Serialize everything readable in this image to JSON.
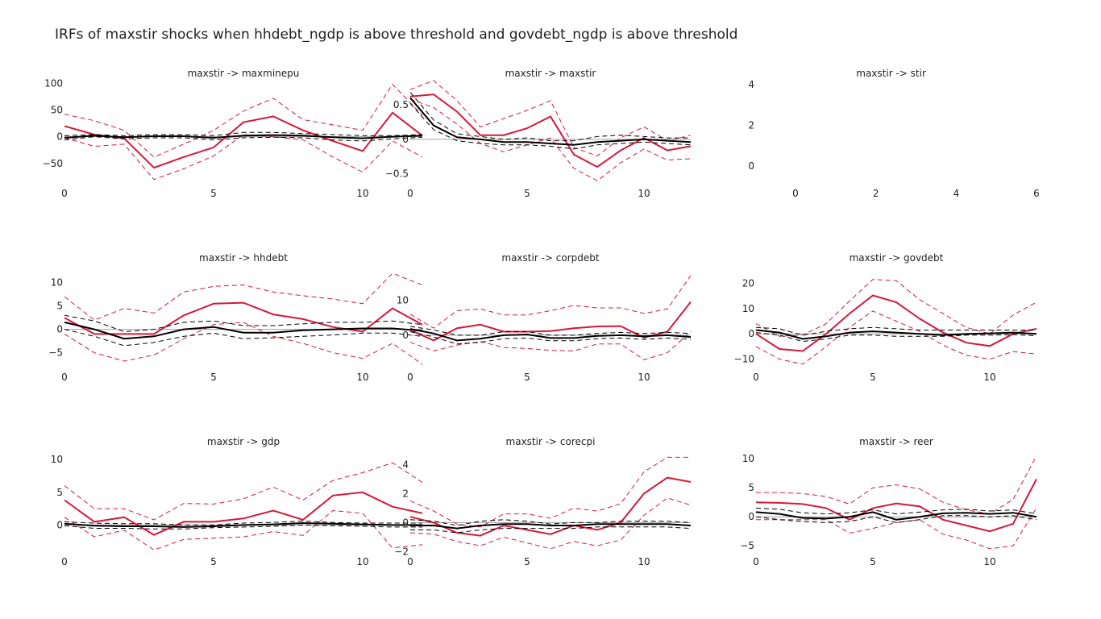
{
  "title": "IRFs of maxstir shocks when hhdebt_ngdp is above threshold and govdebt_ngdp is above threshold",
  "colors": {
    "state": "#d6183b",
    "linear": "#000000",
    "zero_line": "#a0a0a0"
  },
  "chart_data": [
    {
      "type": "line",
      "title": "maxstir -> maxminepu",
      "xlim": [
        0,
        12
      ],
      "ylim": [
        -85,
        105
      ],
      "xticks": [
        0,
        5,
        10
      ],
      "yticks": [
        -50,
        0,
        50,
        100
      ],
      "x": [
        0,
        1,
        2,
        3,
        4,
        5,
        6,
        7,
        8,
        9,
        10,
        11,
        12
      ],
      "series": [
        {
          "role": "state_upper",
          "values": [
            42,
            30,
            12,
            -38,
            -14,
            12,
            48,
            72,
            32,
            22,
            12,
            98,
            40
          ]
        },
        {
          "role": "state",
          "values": [
            20,
            4,
            -3,
            -58,
            -38,
            -20,
            27,
            38,
            12,
            -8,
            -27,
            45,
            2
          ]
        },
        {
          "role": "state_lower",
          "values": [
            -2,
            -18,
            -14,
            -80,
            -60,
            -36,
            4,
            0,
            -6,
            -38,
            -66,
            -8,
            -38
          ]
        },
        {
          "role": "linear_upper",
          "values": [
            2,
            4,
            2,
            4,
            4,
            2,
            8,
            8,
            6,
            4,
            2,
            2,
            4
          ]
        },
        {
          "role": "linear",
          "values": [
            -2,
            2,
            -1,
            1,
            1,
            -2,
            2,
            3,
            2,
            -1,
            -3,
            0,
            2
          ]
        },
        {
          "role": "linear_lower",
          "values": [
            -6,
            0,
            -4,
            -2,
            -2,
            -6,
            -2,
            -1,
            -2,
            -6,
            -8,
            -4,
            -1
          ]
        }
      ]
    },
    {
      "type": "line",
      "title": "maxstir -> maxstir",
      "xlim": [
        0,
        12
      ],
      "ylim": [
        -0.62,
        0.85
      ],
      "xticks": [
        0,
        5,
        10
      ],
      "yticks": [
        -0.5,
        0,
        0.5
      ],
      "x": [
        0,
        1,
        2,
        3,
        4,
        5,
        6,
        7,
        8,
        9,
        10,
        11,
        12
      ],
      "series": [
        {
          "role": "state_upper",
          "values": [
            0.72,
            0.85,
            0.56,
            0.18,
            0.3,
            0.42,
            0.56,
            -0.12,
            -0.24,
            0.02,
            0.18,
            -0.02,
            0.06
          ]
        },
        {
          "role": "state",
          "values": [
            0.62,
            0.65,
            0.4,
            0.06,
            0.06,
            0.16,
            0.33,
            -0.22,
            -0.4,
            -0.16,
            0.02,
            -0.16,
            -0.1
          ]
        },
        {
          "role": "state_lower",
          "values": [
            0.58,
            0.46,
            0.22,
            -0.06,
            -0.18,
            -0.08,
            0.02,
            -0.42,
            -0.6,
            -0.34,
            -0.14,
            -0.3,
            -0.28
          ]
        },
        {
          "role": "linear_upper",
          "values": [
            0.68,
            0.28,
            0.08,
            0.04,
            0.0,
            0.02,
            -0.02,
            -0.02,
            0.04,
            0.06,
            0.04,
            0.02,
            0.02
          ]
        },
        {
          "role": "linear",
          "values": [
            0.6,
            0.2,
            0.03,
            0.0,
            -0.04,
            -0.04,
            -0.06,
            -0.08,
            -0.04,
            -0.02,
            0.0,
            -0.02,
            -0.04
          ]
        },
        {
          "role": "linear_lower",
          "values": [
            0.52,
            0.14,
            -0.02,
            -0.06,
            -0.08,
            -0.08,
            -0.1,
            -0.14,
            -0.08,
            -0.06,
            -0.04,
            -0.06,
            -0.08
          ]
        }
      ]
    },
    {
      "type": "line",
      "title": "maxstir -> stir",
      "xlim": [
        -1,
        6
      ],
      "ylim": [
        -0.8,
        4.2
      ],
      "xticks": [
        0,
        2,
        4,
        6
      ],
      "yticks": [
        0,
        2,
        4
      ],
      "x": [],
      "series": []
    },
    {
      "type": "line",
      "title": "maxstir -> hhdebt",
      "xlim": [
        0,
        12
      ],
      "ylim": [
        -8,
        11.5
      ],
      "xticks": [
        0,
        5,
        10
      ],
      "yticks": [
        -5,
        0,
        5,
        10
      ],
      "x": [
        0,
        1,
        2,
        3,
        4,
        5,
        6,
        7,
        8,
        9,
        10,
        11,
        12
      ],
      "series": [
        {
          "role": "state_upper",
          "values": [
            7,
            2,
            4.5,
            3.5,
            8,
            9.2,
            9.5,
            8,
            7.2,
            6.5,
            5.5,
            12,
            9.5
          ]
        },
        {
          "role": "state",
          "values": [
            2.5,
            -1,
            -1,
            -1,
            3,
            5.5,
            5.7,
            3.2,
            2.2,
            0.5,
            -0.5,
            4.5,
            1
          ]
        },
        {
          "role": "state_lower",
          "values": [
            -1,
            -5,
            -6.8,
            -5.5,
            -2,
            1,
            1.5,
            -1.5,
            -3,
            -5,
            -6.2,
            -3,
            -7.5
          ]
        },
        {
          "role": "linear_upper",
          "values": [
            3,
            1.8,
            -0.5,
            0,
            1.5,
            1.8,
            0.8,
            0.8,
            1.2,
            1.5,
            1.5,
            1.8,
            1
          ]
        },
        {
          "role": "linear",
          "values": [
            1.5,
            0,
            -2,
            -1.5,
            0,
            0.5,
            -0.7,
            -0.7,
            -0.2,
            0,
            0.2,
            0.2,
            -0.3
          ]
        },
        {
          "role": "linear_lower",
          "values": [
            0,
            -1.5,
            -3.5,
            -2.8,
            -1.5,
            -0.8,
            -2,
            -1.8,
            -1.5,
            -1.2,
            -0.8,
            -0.8,
            -1.5
          ]
        }
      ]
    },
    {
      "type": "line",
      "title": "maxstir -> corpdebt",
      "xlim": [
        0,
        12
      ],
      "ylim": [
        -9,
        17
      ],
      "xticks": [
        0,
        5,
        10
      ],
      "yticks": [
        0,
        10
      ],
      "x": [
        0,
        1,
        2,
        3,
        4,
        5,
        6,
        7,
        8,
        9,
        10,
        11,
        12
      ],
      "series": [
        {
          "role": "state_upper",
          "values": [
            6,
            2,
            7,
            7.5,
            5.8,
            5.8,
            7,
            8.5,
            7.8,
            7.8,
            6.2,
            7.5,
            17
          ]
        },
        {
          "role": "state",
          "values": [
            1.5,
            -1.5,
            2,
            3,
            1,
            1,
            1.2,
            2,
            2.5,
            2.6,
            -0.7,
            1,
            9.5
          ]
        },
        {
          "role": "state_lower",
          "values": [
            -2,
            -4.5,
            -2.8,
            -1.8,
            -3.5,
            -3.8,
            -4.3,
            -4.5,
            -2.5,
            -2.5,
            -7,
            -5,
            1
          ]
        },
        {
          "role": "linear_upper",
          "values": [
            2.5,
            1.5,
            0,
            0,
            1,
            1,
            0,
            0,
            0.5,
            0.8,
            0.5,
            0.8,
            0.5
          ]
        },
        {
          "role": "linear",
          "values": [
            1.8,
            0.5,
            -1.5,
            -1,
            0,
            0.2,
            -0.8,
            -0.8,
            -0.2,
            0,
            -0.3,
            0,
            -0.5
          ]
        },
        {
          "role": "linear_lower",
          "values": [
            1,
            -0.5,
            -2.5,
            -2,
            -1,
            -0.8,
            -1.6,
            -1.6,
            -1,
            -0.8,
            -1.2,
            -0.8,
            -1.2
          ]
        }
      ]
    },
    {
      "type": "line",
      "title": "maxstir -> govdebt",
      "xlim": [
        0,
        12
      ],
      "ylim": [
        -13,
        23
      ],
      "xticks": [
        0,
        5,
        10
      ],
      "yticks": [
        -10,
        0,
        10,
        20
      ],
      "x": [
        0,
        1,
        2,
        3,
        4,
        5,
        6,
        7,
        8,
        9,
        10,
        11,
        12
      ],
      "series": [
        {
          "role": "state_upper",
          "values": [
            4,
            -1,
            -0.5,
            4,
            13,
            21.5,
            21,
            13.5,
            8,
            2.5,
            0,
            7.5,
            12.5
          ]
        },
        {
          "role": "state",
          "values": [
            0,
            -6,
            -6.8,
            0,
            8,
            15.2,
            12.5,
            6,
            0.5,
            -3.5,
            -4.8,
            0,
            2
          ]
        },
        {
          "role": "state_lower",
          "values": [
            -5,
            -10,
            -12,
            -5,
            2.5,
            9,
            5,
            1,
            -4.5,
            -8.5,
            -10,
            -7,
            -8
          ]
        },
        {
          "role": "linear_upper",
          "values": [
            2.5,
            2,
            -0.5,
            1,
            2,
            2.5,
            2,
            1.5,
            1.5,
            1.5,
            1.5,
            1.5,
            1.5
          ]
        },
        {
          "role": "linear",
          "values": [
            1.5,
            0.5,
            -2,
            -1,
            0.5,
            1,
            0.5,
            0,
            -0.5,
            0,
            0.2,
            0.5,
            0
          ]
        },
        {
          "role": "linear_lower",
          "values": [
            0.5,
            -0.5,
            -3,
            -2,
            -0.5,
            -0.5,
            -1,
            -1,
            -1,
            -0.5,
            -0.5,
            -0.3,
            -0.8
          ]
        }
      ]
    },
    {
      "type": "line",
      "title": "maxstir -> gdp",
      "xlim": [
        0,
        12
      ],
      "ylim": [
        -4.5,
        11
      ],
      "xticks": [
        0,
        5,
        10
      ],
      "yticks": [
        0,
        5,
        10
      ],
      "x": [
        0,
        1,
        2,
        3,
        4,
        5,
        6,
        7,
        8,
        9,
        10,
        11,
        12
      ],
      "series": [
        {
          "role": "state_upper",
          "values": [
            6,
            2.5,
            2.5,
            0.8,
            3.3,
            3.2,
            4,
            5.8,
            3.8,
            6.8,
            8,
            9.5,
            6.5
          ]
        },
        {
          "role": "state",
          "values": [
            3.8,
            0.5,
            1.2,
            -1.5,
            0.5,
            0.5,
            1,
            2.2,
            0.8,
            4.5,
            5,
            2.8,
            1.8
          ]
        },
        {
          "role": "state_lower",
          "values": [
            1.2,
            -1.8,
            -0.8,
            -3.8,
            -2.2,
            -2,
            -1.8,
            -1,
            -1.6,
            2.2,
            1.8,
            -3.5,
            -3
          ]
        },
        {
          "role": "linear_upper",
          "values": [
            0.5,
            0.3,
            0.2,
            0.2,
            0,
            0,
            0.3,
            0.4,
            0.6,
            0.4,
            0.3,
            0.3,
            0.3
          ]
        },
        {
          "role": "linear",
          "values": [
            0.2,
            -0.1,
            -0.2,
            -0.2,
            -0.3,
            -0.2,
            0,
            0.1,
            0.3,
            0.2,
            0.1,
            0,
            0
          ]
        },
        {
          "role": "linear_lower",
          "values": [
            -0.1,
            -0.5,
            -0.5,
            -0.6,
            -0.6,
            -0.4,
            -0.3,
            -0.2,
            0,
            -0.1,
            -0.2,
            -0.3,
            -0.3
          ]
        }
      ]
    },
    {
      "type": "line",
      "title": "maxstir -> corecpi",
      "xlim": [
        0,
        12
      ],
      "ylim": [
        -2.2,
        4.8
      ],
      "xticks": [
        0,
        5,
        10
      ],
      "yticks": [
        -2,
        0,
        2,
        4
      ],
      "x": [
        0,
        1,
        2,
        3,
        4,
        5,
        6,
        7,
        8,
        9,
        10,
        11,
        12
      ],
      "series": [
        {
          "role": "state_upper",
          "values": [
            1.5,
            0.8,
            -0.1,
            -0.3,
            0.6,
            0.6,
            0.3,
            1,
            0.8,
            1.3,
            3.5,
            4.5,
            4.5
          ]
        },
        {
          "role": "state",
          "values": [
            0.4,
            0,
            -0.7,
            -0.9,
            -0.2,
            -0.5,
            -0.8,
            -0.2,
            -0.5,
            0,
            2,
            3.1,
            2.8
          ]
        },
        {
          "role": "state_lower",
          "values": [
            -0.7,
            -0.8,
            -1.3,
            -1.6,
            -1,
            -1.4,
            -1.8,
            -1.3,
            -1.6,
            -1.2,
            0.5,
            1.7,
            1.2
          ]
        },
        {
          "role": "linear_upper",
          "values": [
            0.2,
            0.1,
            -0.2,
            0.1,
            0.2,
            0.1,
            -0.1,
            0,
            0,
            0.1,
            0.1,
            0.1,
            0
          ]
        },
        {
          "role": "linear",
          "values": [
            -0.2,
            -0.2,
            -0.4,
            -0.2,
            -0.1,
            -0.1,
            -0.2,
            -0.2,
            -0.1,
            -0.1,
            -0.1,
            -0.1,
            -0.2
          ]
        },
        {
          "role": "linear_lower",
          "values": [
            -0.5,
            -0.5,
            -0.7,
            -0.5,
            -0.4,
            -0.4,
            -0.4,
            -0.4,
            -0.3,
            -0.3,
            -0.3,
            -0.3,
            -0.4
          ]
        }
      ]
    },
    {
      "type": "line",
      "title": "maxstir -> reer",
      "xlim": [
        0,
        12
      ],
      "ylim": [
        -6.5,
        11
      ],
      "xticks": [
        0,
        5,
        10
      ],
      "yticks": [
        -5,
        0,
        5,
        10
      ],
      "x": [
        0,
        1,
        2,
        3,
        4,
        5,
        6,
        7,
        8,
        9,
        10,
        11,
        12
      ],
      "series": [
        {
          "role": "state_upper",
          "values": [
            4.2,
            4.2,
            4,
            3.5,
            2.2,
            5,
            5.5,
            4.8,
            2.5,
            1.2,
            0.5,
            3,
            10.5
          ]
        },
        {
          "role": "state",
          "values": [
            2.5,
            2.4,
            2.2,
            1.5,
            -0.5,
            1.5,
            2.3,
            1.8,
            -0.5,
            -1.5,
            -2.5,
            -1.2,
            6.5
          ]
        },
        {
          "role": "state_lower",
          "values": [
            -0.5,
            -0.5,
            -0.5,
            -0.5,
            -2.8,
            -2,
            -1,
            -0.5,
            -3,
            -4,
            -5.5,
            -5,
            1.5
          ]
        },
        {
          "role": "linear_upper",
          "values": [
            1.5,
            1.3,
            0.7,
            0.5,
            0.7,
            1.2,
            0.5,
            0.8,
            1.2,
            1.3,
            1,
            1.2,
            0.5
          ]
        },
        {
          "role": "linear",
          "values": [
            0.8,
            0.5,
            -0.2,
            -0.3,
            0,
            0.8,
            -0.5,
            0,
            0.6,
            0.7,
            0.5,
            0.7,
            0
          ]
        },
        {
          "role": "linear_lower",
          "values": [
            0,
            -0.5,
            -0.8,
            -1,
            -0.8,
            0,
            -1,
            -0.5,
            0.2,
            0.2,
            0,
            0.2,
            -0.5
          ]
        }
      ]
    }
  ]
}
